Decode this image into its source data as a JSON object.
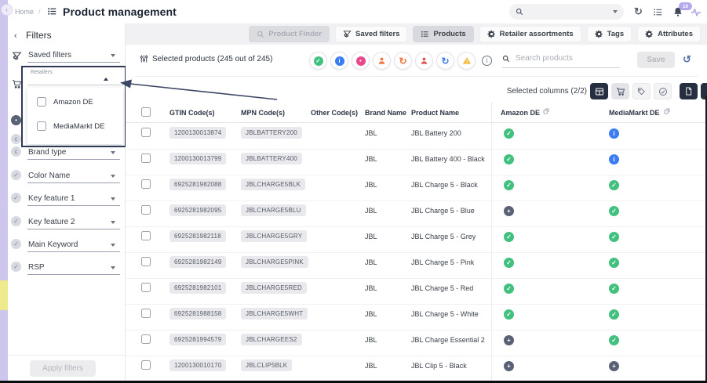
{
  "app": {
    "breadcrumb_home": "Home",
    "breadcrumb_separator": "/",
    "page_title": "Product management",
    "notification_count": "10"
  },
  "tabs": [
    {
      "label": "Product Finder",
      "icon": "search-icon",
      "state": "disabled"
    },
    {
      "label": "Saved filters",
      "icon": "filter-icon",
      "state": "default"
    },
    {
      "label": "Products",
      "icon": "list-icon",
      "state": "active"
    },
    {
      "label": "Retailer assortments",
      "icon": "gear-icon",
      "state": "default"
    },
    {
      "label": "Tags",
      "icon": "gear-icon",
      "state": "default"
    },
    {
      "label": "Attributes",
      "icon": "gear-icon",
      "state": "default"
    }
  ],
  "filters_panel": {
    "title": "Filters",
    "saved_filters_label": "Saved filters",
    "retailers_dropdown": {
      "label": "Retailers",
      "options": [
        {
          "label": "Amazon DE",
          "checked": false
        },
        {
          "label": "MediaMarkt DE",
          "checked": false
        }
      ]
    },
    "occluded_row_icons": [
      "dark-dot-badge-icon",
      "c-badge-icon"
    ],
    "filter_fields": [
      {
        "label": "Brand type",
        "icon": "c-badge-icon"
      },
      {
        "label": "Color Name",
        "icon": "check-badge-icon"
      },
      {
        "label": "Key feature 1",
        "icon": "check-badge-icon"
      },
      {
        "label": "Key feature 2",
        "icon": "check-badge-icon"
      },
      {
        "label": "Main Keyword",
        "icon": "check-badge-icon"
      },
      {
        "label": "RSP",
        "icon": "check-badge-icon"
      }
    ],
    "apply_button_label": "Apply filters"
  },
  "toolbar": {
    "selected_products_label": "Selected products (245 out of 245)",
    "search_placeholder": "Search products",
    "save_button_label": "Save",
    "selected_columns_label": "Selected columns (2/2)",
    "action_icons": [
      {
        "name": "approve-status-action-icon",
        "glyph": "check",
        "color": "#42c07d"
      },
      {
        "name": "info-status-action-icon",
        "glyph": "info",
        "color": "#3b7cf0"
      },
      {
        "name": "exclude-status-action-icon",
        "glyph": "dot",
        "color": "#e8488a"
      },
      {
        "name": "assign-user-action-icon",
        "glyph": "person",
        "color": "#f0703c"
      },
      {
        "name": "sync-action-icon",
        "glyph": "refresh",
        "color": "#f0703c"
      },
      {
        "name": "user-action-icon",
        "glyph": "person",
        "color": "#e05252"
      },
      {
        "name": "refresh-action-icon",
        "glyph": "refresh",
        "color": "#3b7cf0"
      },
      {
        "name": "warning-action-icon",
        "glyph": "warning",
        "color": "#f5b83d"
      }
    ],
    "column_buttons": [
      {
        "name": "columns-table-button",
        "icon": "table-grid-icon",
        "style": "dark"
      },
      {
        "name": "columns-retailers-button",
        "icon": "cart-icon",
        "style": "gray"
      },
      {
        "name": "columns-tags-button",
        "icon": "tag-icon",
        "style": "light"
      },
      {
        "name": "columns-status-button",
        "icon": "check-circle-icon",
        "style": "light"
      },
      {
        "name": "export-document-button",
        "icon": "document-icon",
        "style": "dark gapL"
      },
      {
        "name": "add-column-button",
        "icon": "plus-icon",
        "style": "dark"
      }
    ]
  },
  "table": {
    "columns": [
      "GTIN Code(s)",
      "MPN Code(s)",
      "Other Code(s)",
      "Brand Name",
      "Product Name",
      "Amazon DE",
      "MediaMarkt DE"
    ],
    "rows": [
      {
        "gtin": "1200130013874",
        "mpn": "JBLBATTERY200",
        "other": "",
        "brand": "JBL",
        "product": "JBL Battery 200",
        "amazon_de": "check",
        "mediamarkt_de": "info"
      },
      {
        "gtin": "1200130013799",
        "mpn": "JBLBATTERY400",
        "other": "",
        "brand": "JBL",
        "product": "JBL Battery 400 - Black",
        "amazon_de": "check",
        "mediamarkt_de": "info"
      },
      {
        "gtin": "6925281982088",
        "mpn": "JBLCHARGE5BLK",
        "other": "",
        "brand": "JBL",
        "product": "JBL Charge 5 - Black",
        "amazon_de": "check",
        "mediamarkt_de": "check"
      },
      {
        "gtin": "6925281982095",
        "mpn": "JBLCHARGE5BLU",
        "other": "",
        "brand": "JBL",
        "product": "JBL Charge 5 - Blue",
        "amazon_de": "add",
        "mediamarkt_de": "check"
      },
      {
        "gtin": "6925281982118",
        "mpn": "JBLCHARGE5GRY",
        "other": "",
        "brand": "JBL",
        "product": "JBL Charge 5 - Grey",
        "amazon_de": "check",
        "mediamarkt_de": "check"
      },
      {
        "gtin": "6925281982149",
        "mpn": "JBLCHARGE5PINK",
        "other": "",
        "brand": "JBL",
        "product": "JBL Charge 5 - Pink",
        "amazon_de": "check",
        "mediamarkt_de": "check"
      },
      {
        "gtin": "6925281982101",
        "mpn": "JBLCHARGE5RED",
        "other": "",
        "brand": "JBL",
        "product": "JBL Charge 5 - Red",
        "amazon_de": "check",
        "mediamarkt_de": "check"
      },
      {
        "gtin": "6925281988158",
        "mpn": "JBLCHARGE5WHT",
        "other": "",
        "brand": "JBL",
        "product": "JBL Charge 5 - White",
        "amazon_de": "check",
        "mediamarkt_de": "check"
      },
      {
        "gtin": "6925281994579",
        "mpn": "JBLCHARGEES2",
        "other": "",
        "brand": "JBL",
        "product": "JBL Charge Essential 2",
        "amazon_de": "add",
        "mediamarkt_de": "check"
      },
      {
        "gtin": "1200130010170",
        "mpn": "JBLCLIP5BLK",
        "other": "",
        "brand": "JBL",
        "product": "JBL Clip 5 - Black",
        "amazon_de": "add",
        "mediamarkt_de": "add"
      }
    ]
  },
  "colors": {
    "status_check": "#42c07d",
    "status_info": "#3b7cf0",
    "status_add": "#5a6175",
    "accent_strip": "#cfc6ee",
    "strip_highlight": "#eeeb8d",
    "dark_button": "#252f3f",
    "annotation": "#3a4663"
  }
}
